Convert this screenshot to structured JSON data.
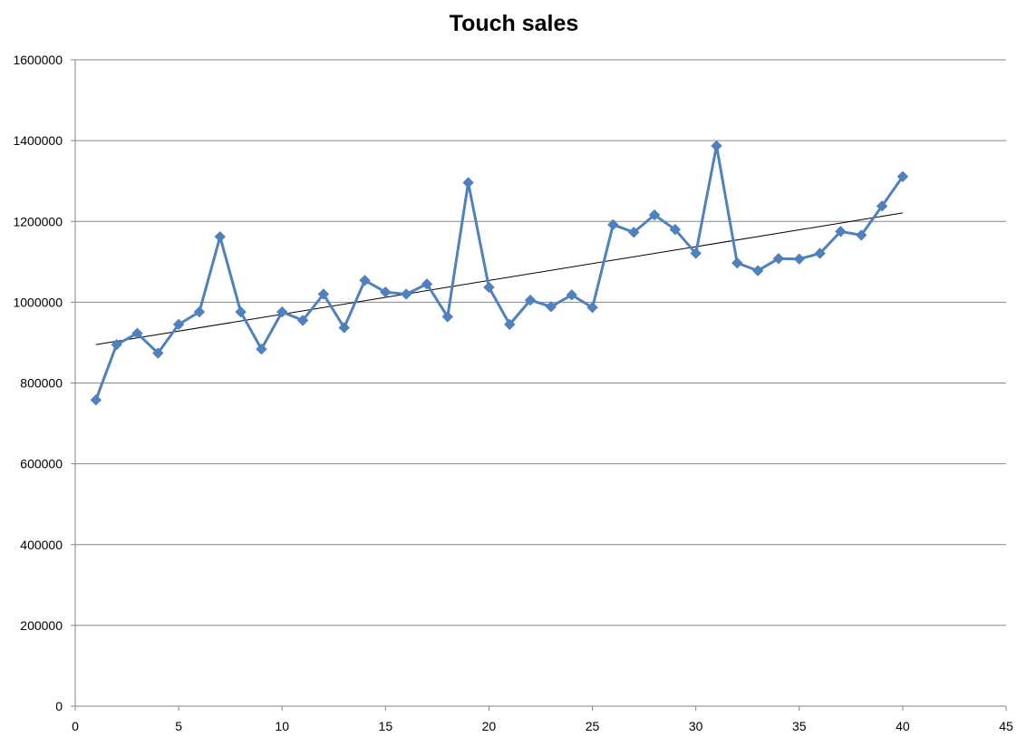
{
  "chart_data": {
    "type": "line",
    "title": "Touch sales",
    "xlabel": "",
    "ylabel": "",
    "xlim": [
      0,
      45
    ],
    "ylim": [
      0,
      1600000
    ],
    "x_ticks": [
      0,
      5,
      10,
      15,
      20,
      25,
      30,
      35,
      40,
      45
    ],
    "y_ticks": [
      0,
      200000,
      400000,
      600000,
      800000,
      1000000,
      1200000,
      1400000,
      1600000
    ],
    "grid": "horizontal",
    "legend": "none",
    "series": [
      {
        "color": "#4F81BD",
        "marker": "diamond",
        "x": [
          1,
          2,
          3,
          4,
          5,
          6,
          7,
          8,
          9,
          10,
          11,
          12,
          13,
          14,
          15,
          16,
          17,
          18,
          19,
          20,
          21,
          22,
          23,
          24,
          25,
          26,
          27,
          28,
          29,
          30,
          31,
          32,
          33,
          34,
          35,
          36,
          37,
          38,
          39,
          40
        ],
        "values": [
          758000,
          895000,
          923000,
          874000,
          945000,
          976000,
          1162000,
          976000,
          884000,
          976000,
          955000,
          1020000,
          937000,
          1054000,
          1025000,
          1020000,
          1045000,
          964000,
          1296000,
          1037000,
          945000,
          1005000,
          989000,
          1018000,
          987000,
          1192000,
          1173000,
          1216000,
          1180000,
          1121000,
          1387000,
          1097000,
          1078000,
          1108000,
          1107000,
          1121000,
          1175000,
          1166000,
          1238000,
          1311000
        ]
      }
    ],
    "trendline": {
      "type": "linear",
      "color": "#000000",
      "x": [
        1,
        40
      ],
      "values": [
        895000,
        1221000
      ]
    }
  }
}
